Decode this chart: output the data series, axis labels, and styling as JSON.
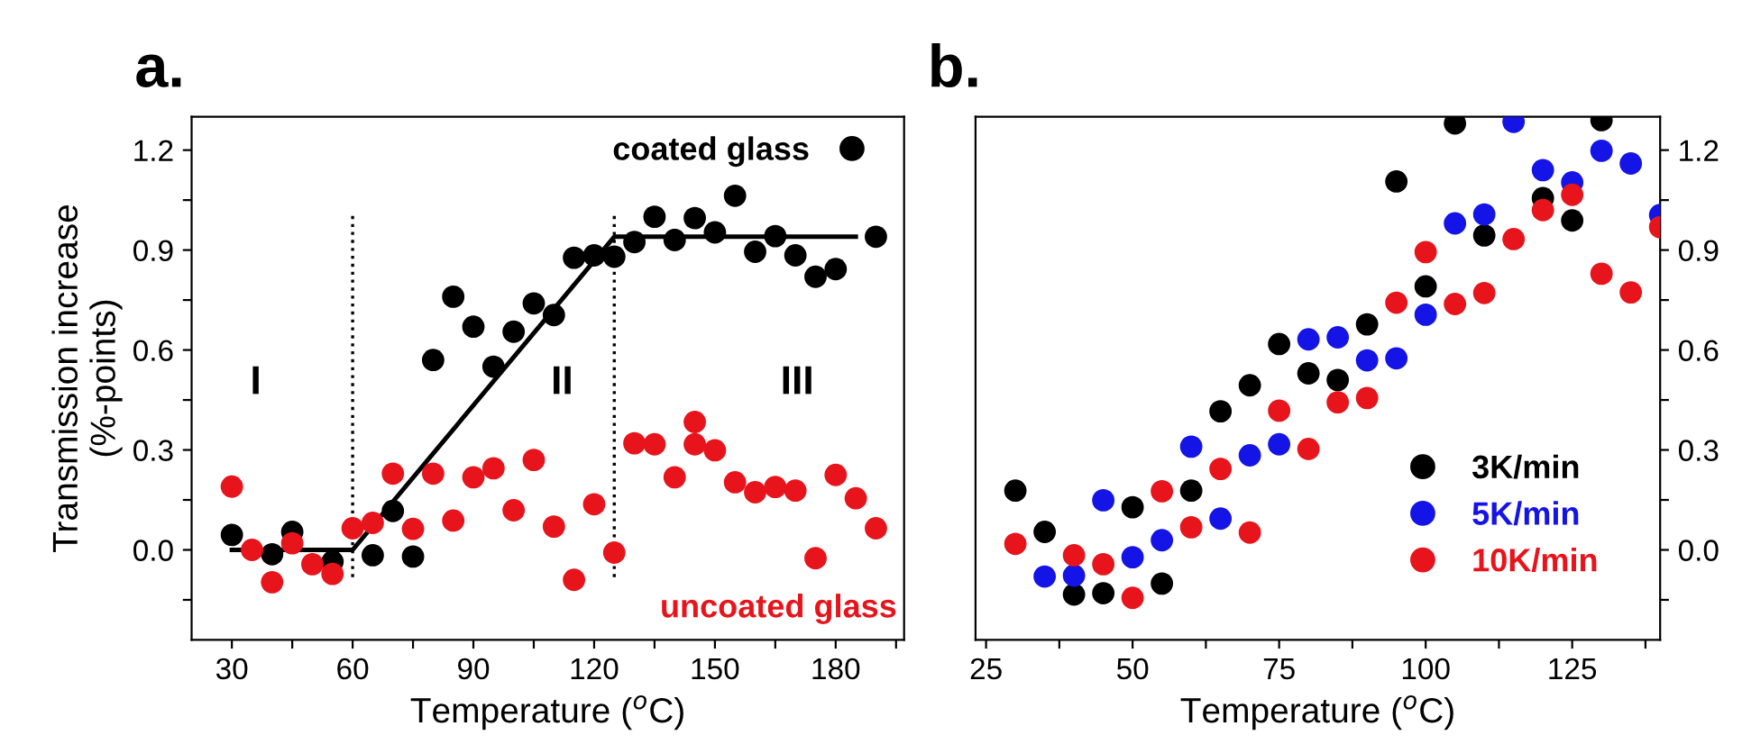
{
  "chart_data": [
    {
      "type": "scatter",
      "title": "a.",
      "xlabel": "Temperature ($^{o}$C)",
      "ylabel": "Transmission increase\n(%-points)",
      "xlim": [
        20,
        197
      ],
      "ylim": [
        -0.27,
        1.3
      ],
      "xticks": [
        30,
        {
          "value": 45,
          "label": null
        },
        60,
        {
          "value": 75,
          "label": null
        },
        90,
        {
          "value": 105,
          "label": null
        },
        120,
        {
          "value": 135,
          "label": null
        },
        150,
        {
          "value": 165,
          "label": null
        },
        180,
        {
          "value": 195,
          "label": null
        }
      ],
      "yticks": [
        {
          "value": -0.15,
          "label": null
        },
        {
          "value": 0,
          "label": "0.0"
        },
        {
          "value": 0.15,
          "label": null
        },
        0.3,
        {
          "value": 0.45,
          "label": null
        },
        0.6,
        {
          "value": 0.75,
          "label": null
        },
        0.9,
        {
          "value": 1.05,
          "label": null
        },
        1.2
      ],
      "marker": "circle",
      "legend": "top right",
      "grid": false,
      "series": [
        {
          "name": "coated glass",
          "color": "#000000",
          "x": [
            30,
            40,
            45,
            55,
            65,
            70,
            75,
            80,
            85,
            90,
            95,
            100,
            105,
            110,
            115,
            120,
            125,
            130,
            135,
            140,
            145,
            150,
            155,
            160,
            165,
            170,
            175,
            180,
            190
          ],
          "values": [
            0.045,
            -0.013,
            0.054,
            -0.035,
            -0.016,
            0.117,
            -0.02,
            0.57,
            0.76,
            0.67,
            0.55,
            0.655,
            0.74,
            0.705,
            0.877,
            0.884,
            0.88,
            0.924,
            1.0,
            0.93,
            0.996,
            0.953,
            1.063,
            0.895,
            0.942,
            0.884,
            0.82,
            0.843,
            0.94
          ]
        },
        {
          "name": "uncoated glass",
          "color": "#e8141c",
          "x": [
            30,
            35,
            40,
            45,
            50,
            55,
            60,
            65,
            70,
            75,
            80,
            85,
            90,
            95,
            100,
            105,
            110,
            115,
            120,
            125,
            130,
            135,
            140,
            145,
            145,
            150,
            155,
            160,
            165,
            170,
            175,
            180,
            185,
            190
          ],
          "values": [
            0.19,
            0.0,
            -0.097,
            0.02,
            -0.043,
            -0.072,
            0.065,
            0.081,
            0.229,
            0.063,
            0.229,
            0.088,
            0.218,
            0.245,
            0.119,
            0.27,
            0.07,
            -0.09,
            0.137,
            -0.008,
            0.32,
            0.317,
            0.218,
            0.384,
            0.317,
            0.299,
            0.203,
            0.173,
            0.189,
            0.178,
            -0.025,
            0.225,
            0.155,
            0.065
          ]
        },
        {
          "type": "line",
          "marker": "none",
          "color": "#000000",
          "x": [
            30,
            60,
            125,
            185
          ],
          "values": [
            0,
            0,
            0.94,
            0.94
          ]
        }
      ],
      "ref_lines": [
        {
          "axis": "x",
          "value": 60,
          "color": "#000000",
          "line_style": "dotted"
        },
        {
          "axis": "x",
          "value": 125,
          "color": "#000000",
          "line_style": "dotted"
        }
      ],
      "annotations": [
        "I",
        "II",
        "III"
      ]
    },
    {
      "type": "scatter",
      "title": "b.",
      "xlabel": "Temperature ($^{o}$C)",
      "xlim": [
        23.2,
        140
      ],
      "ylim": [
        -0.27,
        1.3
      ],
      "xticks": [
        25,
        {
          "value": 37.5,
          "label": null
        },
        50,
        {
          "value": 62.5,
          "label": null
        },
        75,
        {
          "value": 87.5,
          "label": null
        },
        100,
        {
          "value": 112.5,
          "label": null
        },
        125,
        {
          "value": 137.5,
          "label": null
        }
      ],
      "yticks": [
        {
          "value": -0.15,
          "label": null
        },
        {
          "value": 0,
          "label": "0.0"
        },
        {
          "value": 0.15,
          "label": null
        },
        0.3,
        {
          "value": 0.45,
          "label": null
        },
        0.6,
        {
          "value": 0.75,
          "label": null
        },
        0.9,
        {
          "value": 1.05,
          "label": null
        },
        1.2
      ],
      "tick_labels": "xy2",
      "marker": "circle",
      "legend": "bottom right",
      "grid": false,
      "series": [
        {
          "name": "3K/min",
          "color": "#000000",
          "x": [
            30,
            35,
            40,
            45,
            50,
            55,
            60,
            65,
            70,
            75,
            80,
            85,
            90,
            95,
            100,
            105,
            110,
            120,
            125,
            130
          ],
          "values": [
            0.178,
            0.054,
            -0.134,
            -0.13,
            0.128,
            -0.101,
            0.178,
            0.416,
            0.494,
            0.618,
            0.53,
            0.51,
            0.677,
            1.106,
            0.791,
            1.28,
            0.944,
            1.056,
            0.989,
            1.29
          ]
        },
        {
          "name": "5K/min",
          "color": "#1414e6",
          "x": [
            35,
            40,
            45,
            50,
            55,
            60,
            65,
            70,
            75,
            80,
            85,
            90,
            95,
            100,
            105,
            110,
            115,
            120,
            125,
            130,
            135,
            140
          ],
          "values": [
            -0.08,
            -0.077,
            0.149,
            -0.022,
            0.029,
            0.31,
            0.094,
            0.284,
            0.317,
            0.632,
            0.638,
            0.569,
            0.575,
            0.706,
            0.98,
            1.007,
            1.285,
            1.14,
            1.103,
            1.198,
            1.16,
            1.005
          ]
        },
        {
          "name": "10K/min",
          "color": "#e8141c",
          "x": [
            30,
            40,
            45,
            50,
            55,
            60,
            65,
            70,
            75,
            80,
            85,
            90,
            95,
            100,
            105,
            110,
            115,
            120,
            125,
            130,
            135,
            140
          ],
          "values": [
            0.018,
            -0.016,
            -0.043,
            -0.144,
            0.176,
            0.068,
            0.243,
            0.052,
            0.418,
            0.303,
            0.443,
            0.456,
            0.742,
            0.894,
            0.738,
            0.771,
            0.933,
            1.02,
            1.066,
            0.829,
            0.773,
            0.969
          ]
        }
      ]
    }
  ]
}
